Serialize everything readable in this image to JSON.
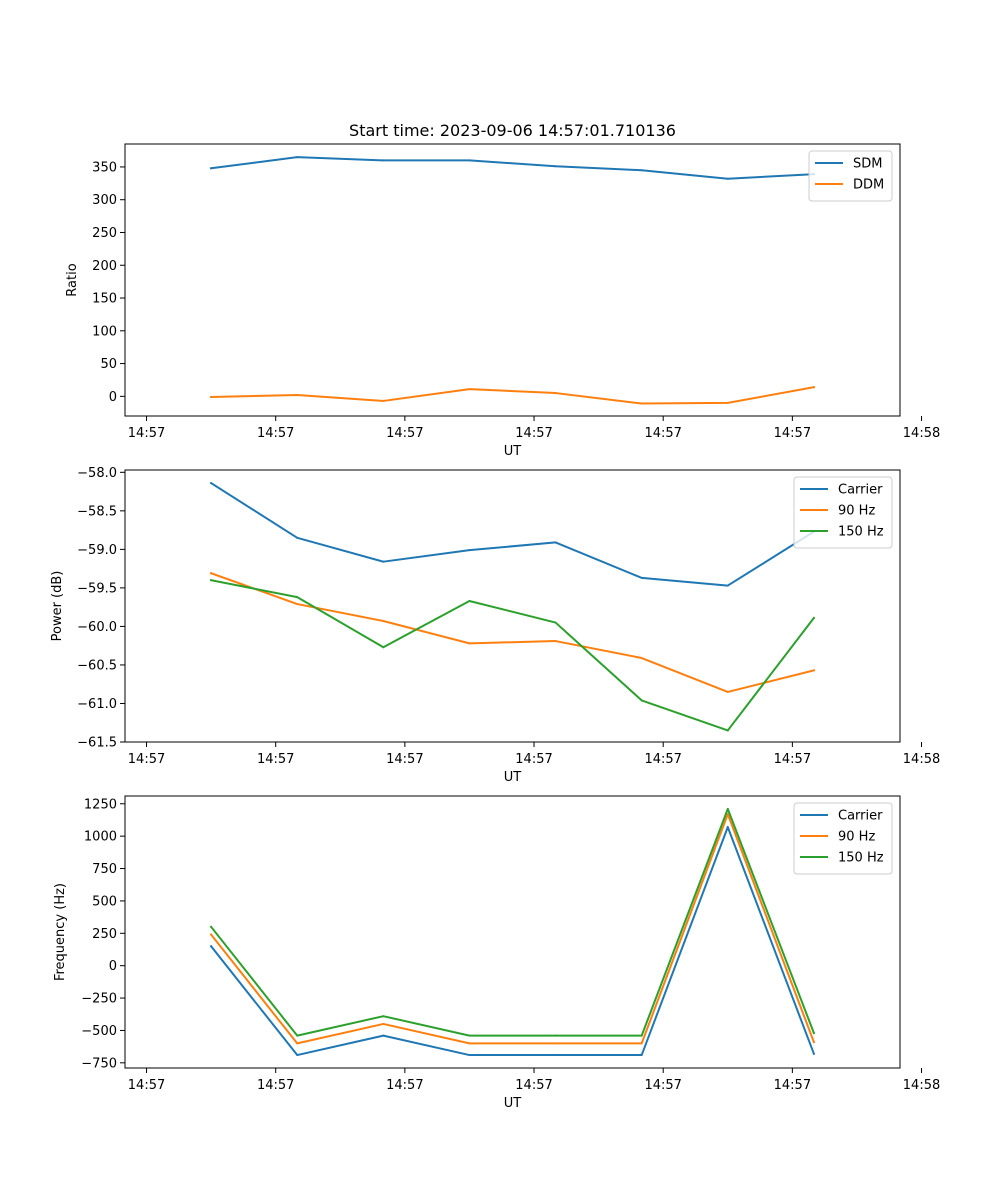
{
  "title": "Start time: 2023-09-06 14:57:01.710136",
  "chart_data": [
    {
      "type": "line",
      "title": "Start time: 2023-09-06 14:57:01.710136",
      "xlabel": "UT",
      "ylabel": "Ratio",
      "xlim": [
        0,
        9
      ],
      "ylim": [
        -30,
        385
      ],
      "x_ticks": [
        0.25,
        1.75,
        3.25,
        4.75,
        6.25,
        7.75,
        9.25
      ],
      "x_tick_labels": [
        "14:57",
        "14:57",
        "14:57",
        "14:57",
        "14:57",
        "14:57",
        "14:58"
      ],
      "y_ticks": [
        0,
        50,
        100,
        150,
        200,
        250,
        300,
        350
      ],
      "legend_position": "top-right",
      "x": [
        1,
        2,
        3,
        4,
        5,
        6,
        7,
        8
      ],
      "series": [
        {
          "name": "SDM",
          "color": "#1f77b4",
          "values": [
            348,
            365,
            360,
            360,
            351,
            345,
            332,
            339
          ]
        },
        {
          "name": "DDM",
          "color": "#ff7f0e",
          "values": [
            -1,
            2,
            -7,
            11,
            5,
            -11,
            -10,
            14
          ]
        }
      ]
    },
    {
      "type": "line",
      "xlabel": "UT",
      "ylabel": "Power (dB)",
      "xlim": [
        0,
        9
      ],
      "ylim": [
        -61.5,
        -57.97
      ],
      "x_ticks": [
        0.25,
        1.75,
        3.25,
        4.75,
        6.25,
        7.75,
        9.25
      ],
      "x_tick_labels": [
        "14:57",
        "14:57",
        "14:57",
        "14:57",
        "14:57",
        "14:57",
        "14:58"
      ],
      "y_ticks": [
        -58.0,
        -58.5,
        -59.0,
        -59.5,
        -60.0,
        -60.5,
        -61.0,
        -61.5
      ],
      "y_tick_labels": [
        "−58.0",
        "−58.5",
        "−59.0",
        "−59.5",
        "−60.0",
        "−60.5",
        "−61.0",
        "−61.5"
      ],
      "legend_position": "top-right",
      "x": [
        1,
        2,
        3,
        4,
        5,
        6,
        7,
        8
      ],
      "series": [
        {
          "name": "Carrier",
          "color": "#1f77b4",
          "values": [
            -58.14,
            -58.85,
            -59.16,
            -59.01,
            -58.91,
            -59.37,
            -59.47,
            -58.77
          ]
        },
        {
          "name": "90 Hz",
          "color": "#ff7f0e",
          "values": [
            -59.31,
            -59.71,
            -59.93,
            -60.22,
            -60.19,
            -60.41,
            -60.85,
            -60.57
          ]
        },
        {
          "name": "150 Hz",
          "color": "#2ca02c",
          "values": [
            -59.4,
            -59.62,
            -60.27,
            -59.67,
            -59.95,
            -60.96,
            -61.35,
            -59.89
          ]
        }
      ]
    },
    {
      "type": "line",
      "xlabel": "UT",
      "ylabel": "Frequency (Hz)",
      "xlim": [
        0,
        9
      ],
      "ylim": [
        -790,
        1310
      ],
      "x_ticks": [
        0.25,
        1.75,
        3.25,
        4.75,
        6.25,
        7.75,
        9.25
      ],
      "x_tick_labels": [
        "14:57",
        "14:57",
        "14:57",
        "14:57",
        "14:57",
        "14:57",
        "14:58"
      ],
      "y_ticks": [
        -750,
        -500,
        -250,
        0,
        250,
        500,
        750,
        1000,
        1250
      ],
      "y_tick_labels": [
        "−750",
        "−500",
        "−250",
        "0",
        "250",
        "500",
        "750",
        "1000",
        "1250"
      ],
      "legend_position": "top-right",
      "x": [
        1,
        2,
        3,
        4,
        5,
        6,
        7,
        8
      ],
      "series": [
        {
          "name": "Carrier",
          "color": "#1f77b4",
          "values": [
            150,
            -690,
            -540,
            -690,
            -690,
            -690,
            1070,
            -680
          ]
        },
        {
          "name": "90 Hz",
          "color": "#ff7f0e",
          "values": [
            240,
            -600,
            -450,
            -600,
            -600,
            -600,
            1170,
            -590
          ]
        },
        {
          "name": "150 Hz",
          "color": "#2ca02c",
          "values": [
            300,
            -540,
            -390,
            -540,
            -540,
            -540,
            1210,
            -520
          ]
        }
      ]
    }
  ]
}
